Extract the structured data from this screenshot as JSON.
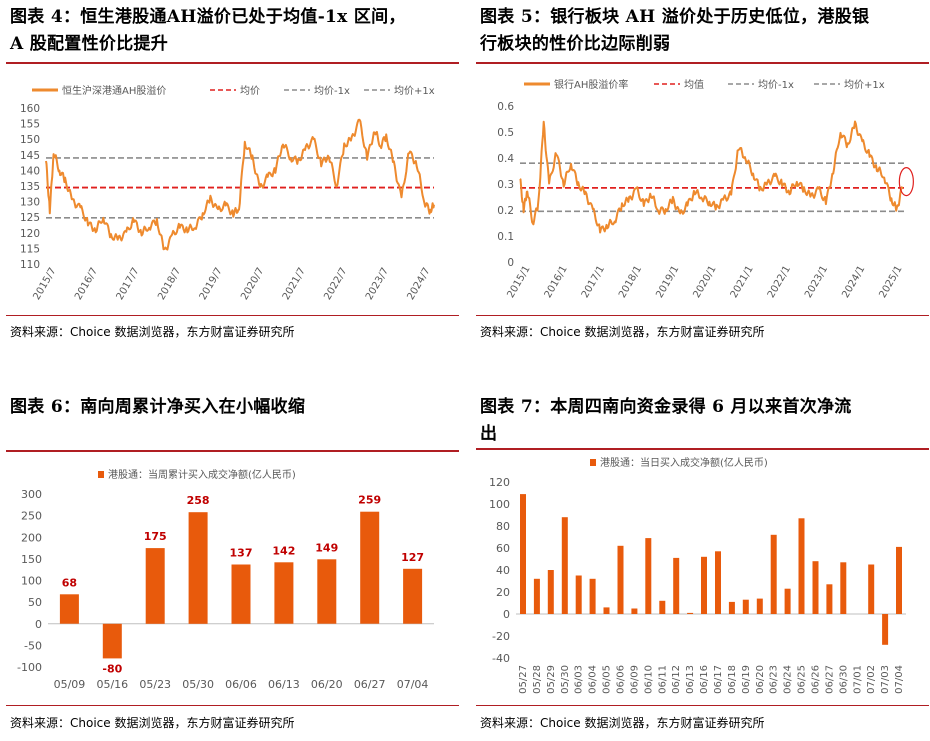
{
  "source_text": "资料来源：Choice 数据浏览器，东方财富证券研究所",
  "colors": {
    "orange": "#ee8a2e",
    "red": "#e0201e",
    "gray": "#8c8c8c",
    "bar": "#e85a0c",
    "title_red": "#b01e23"
  },
  "chart_data": [
    {
      "id": "fig4",
      "type": "line",
      "title": "图表 4：恒生港股通AH溢价已处于均值-1x区间，A股配置性价比提升",
      "title_lines": [
        "图表 4：恒生港股通AH溢价已处于均值-1x 区间，",
        "A 股配置性价比提升"
      ],
      "legend": [
        "恒生沪深港通AH股溢价",
        "均价",
        "均价-1x",
        "均价+1x"
      ],
      "x_ticks": [
        "2015/7",
        "2016/7",
        "2017/7",
        "2018/7",
        "2019/7",
        "2020/7",
        "2021/7",
        "2022/7",
        "2023/7",
        "2024/7"
      ],
      "y_ticks": [
        110,
        115,
        120,
        125,
        130,
        135,
        140,
        145,
        150,
        155,
        160
      ],
      "ylim": [
        110,
        160
      ],
      "mean": 134.5,
      "minus1": 124.8,
      "plus1": 144.0,
      "x_range": [
        2015.4,
        2025.55
      ],
      "series": {
        "x": [
          2015.4,
          2015.5,
          2015.6,
          2015.75,
          2015.9,
          2016.1,
          2016.3,
          2016.5,
          2016.7,
          2016.9,
          2017.1,
          2017.3,
          2017.5,
          2017.7,
          2017.9,
          2018.1,
          2018.3,
          2018.5,
          2018.7,
          2018.9,
          2019.1,
          2019.3,
          2019.5,
          2019.7,
          2019.9,
          2020.1,
          2020.3,
          2020.45,
          2020.6,
          2020.8,
          2021.0,
          2021.2,
          2021.4,
          2021.6,
          2021.8,
          2022.0,
          2022.2,
          2022.4,
          2022.6,
          2022.8,
          2023.0,
          2023.2,
          2023.4,
          2023.6,
          2023.8,
          2024.0,
          2024.15,
          2024.3,
          2024.5,
          2024.7,
          2024.9,
          2025.1,
          2025.3,
          2025.45,
          2025.55
        ],
        "y": [
          143,
          127,
          146,
          140,
          137,
          130,
          128,
          123,
          121,
          125,
          119,
          118,
          120,
          124,
          120,
          122,
          124,
          114,
          119,
          122,
          121,
          122,
          126,
          131,
          127,
          129,
          126,
          128,
          149,
          144,
          134,
          138,
          140,
          149,
          144,
          143,
          147,
          150,
          142,
          145,
          135,
          148,
          150,
          156,
          144,
          153,
          148,
          151,
          142,
          131,
          146,
          142,
          130,
          127,
          129
        ]
      }
    },
    {
      "id": "fig5",
      "type": "line",
      "title": "图表 5：银行板块AH溢价处于历史低位，港股银行板块的性价比边际削弱",
      "title_lines": [
        "图表 5：银行板块 AH 溢价处于历史低位，港股银",
        "行板块的性价比边际削弱"
      ],
      "legend": [
        "银行AH股溢价率",
        "均值",
        "均价-1x",
        "均价+1x"
      ],
      "x_ticks": [
        "2015/1",
        "2016/1",
        "2017/1",
        "2018/1",
        "2019/1",
        "2020/1",
        "2021/1",
        "2022/1",
        "2023/1",
        "2024/1",
        "2025/1"
      ],
      "y_ticks": [
        0,
        0.1,
        0.2,
        0.3,
        0.4,
        0.5,
        0.6
      ],
      "ylim": [
        0,
        0.6
      ],
      "mean": 0.285,
      "minus1": 0.195,
      "plus1": 0.38,
      "x_range": [
        2015.0,
        2025.6
      ],
      "series": {
        "x": [
          2015.0,
          2015.1,
          2015.2,
          2015.35,
          2015.5,
          2015.65,
          2015.8,
          2016.0,
          2016.2,
          2016.4,
          2016.6,
          2016.8,
          2017.0,
          2017.2,
          2017.4,
          2017.6,
          2017.8,
          2018.0,
          2018.2,
          2018.4,
          2018.6,
          2018.8,
          2019.0,
          2019.2,
          2019.4,
          2019.6,
          2019.8,
          2020.0,
          2020.2,
          2020.4,
          2020.6,
          2020.8,
          2021.0,
          2021.2,
          2021.4,
          2021.6,
          2021.8,
          2022.0,
          2022.2,
          2022.4,
          2022.6,
          2022.8,
          2023.0,
          2023.2,
          2023.4,
          2023.6,
          2023.8,
          2024.0,
          2024.2,
          2024.4,
          2024.6,
          2024.8,
          2025.0,
          2025.2,
          2025.35,
          2025.5
        ],
        "y": [
          0.32,
          0.2,
          0.28,
          0.15,
          0.22,
          0.53,
          0.3,
          0.42,
          0.3,
          0.38,
          0.3,
          0.26,
          0.2,
          0.12,
          0.14,
          0.16,
          0.22,
          0.24,
          0.28,
          0.22,
          0.26,
          0.2,
          0.2,
          0.24,
          0.18,
          0.22,
          0.27,
          0.25,
          0.23,
          0.21,
          0.24,
          0.26,
          0.44,
          0.4,
          0.34,
          0.28,
          0.3,
          0.33,
          0.3,
          0.27,
          0.31,
          0.28,
          0.25,
          0.28,
          0.23,
          0.35,
          0.5,
          0.45,
          0.53,
          0.46,
          0.41,
          0.36,
          0.33,
          0.24,
          0.2,
          0.29
        ]
      }
    },
    {
      "id": "fig6",
      "type": "bar",
      "title": "图表 6：南向周累计净买入在小幅收缩",
      "title_lines": [
        "图表 6：南向周累计净买入在小幅收缩"
      ],
      "legend": [
        "港股通：当周累计买入成交净额(亿人民币)"
      ],
      "categories": [
        "05/09",
        "05/16",
        "05/23",
        "05/30",
        "06/06",
        "06/13",
        "06/20",
        "06/27",
        "07/04"
      ],
      "values": [
        68,
        -80,
        175,
        258,
        137,
        142,
        149,
        259,
        127
      ],
      "y_ticks": [
        -100,
        -50,
        0,
        50,
        100,
        150,
        200,
        250,
        300
      ],
      "ylim": [
        -100,
        300
      ]
    },
    {
      "id": "fig7",
      "type": "bar",
      "title": "图表 7：本周四南向资金录得6月以来首次净流出",
      "title_lines": [
        "图表 7：本周四南向资金录得 6 月以来首次净流",
        "出"
      ],
      "legend": [
        "港股通：当日买入成交净额(亿人民币)"
      ],
      "categories": [
        "05/27",
        "05/28",
        "05/29",
        "05/30",
        "06/03",
        "06/04",
        "06/05",
        "06/06",
        "06/09",
        "06/10",
        "06/11",
        "06/12",
        "06/13",
        "06/16",
        "06/17",
        "06/18",
        "06/19",
        "06/20",
        "06/23",
        "06/24",
        "06/25",
        "06/26",
        "06/27",
        "06/30",
        "07/01",
        "07/02",
        "07/03",
        "07/04"
      ],
      "values": [
        109,
        32,
        40,
        88,
        35,
        32,
        6,
        62,
        5,
        69,
        12,
        51,
        1,
        52,
        57,
        11,
        13,
        14,
        72,
        23,
        87,
        48,
        27,
        47,
        0,
        45,
        -28,
        61
      ],
      "y_ticks": [
        -40,
        -20,
        0,
        20,
        40,
        60,
        80,
        100,
        120
      ],
      "ylim": [
        -40,
        120
      ]
    }
  ]
}
